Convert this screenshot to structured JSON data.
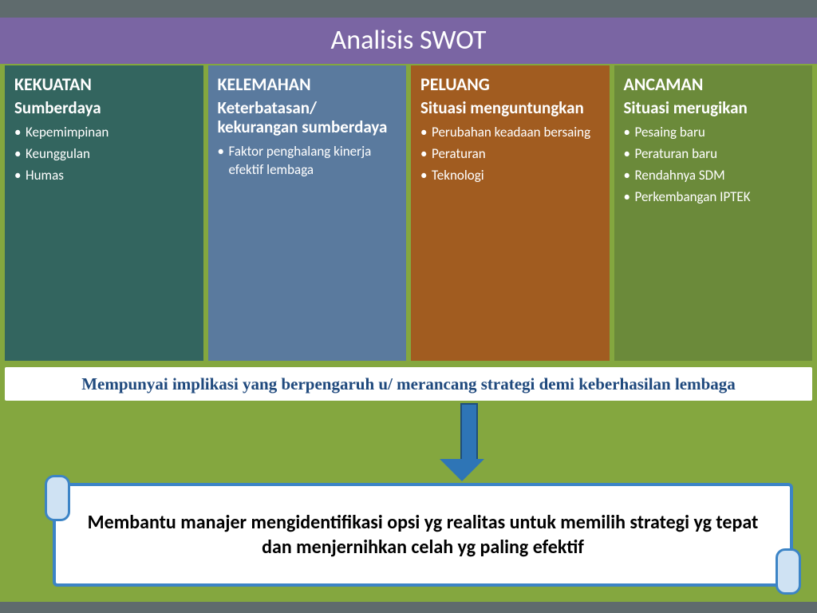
{
  "title": "Analisis SWOT",
  "colors": {
    "page_bg": "#84a73f",
    "strip": "#5f6b6d",
    "title_band": "#7a65a3",
    "implication_text": "#1f497d",
    "arrow": "#2e75b6",
    "scroll_border": "#3c84c6"
  },
  "columns": [
    {
      "bg": "#33655f",
      "title": "KEKUATAN",
      "subtitle": "Sumberdaya",
      "items": [
        "Kepemimpinan",
        "Keunggulan",
        "Humas"
      ]
    },
    {
      "bg": "#5a7a9e",
      "title": "KELEMAHAN",
      "subtitle": "Keterbatasan/ kekurangan sumberdaya",
      "items": [
        "Faktor penghalang kinerja efektif lembaga"
      ]
    },
    {
      "bg": "#a15c20",
      "title": "PELUANG",
      "subtitle": "Situasi menguntungkan",
      "items": [
        "Perubahan keadaan bersaing",
        "Peraturan",
        "Teknologi"
      ]
    },
    {
      "bg": "#6b8a3a",
      "title": "ANCAMAN",
      "subtitle": "Situasi merugikan",
      "items": [
        "Pesaing baru",
        "Peraturan baru",
        "Rendahnya SDM",
        "Perkembangan IPTEK"
      ]
    }
  ],
  "implication": "Mempunyai implikasi yang berpengaruh u/ merancang strategi demi keberhasilan lembaga",
  "conclusion": "Membantu manajer mengidentifikasi opsi yg realitas untuk memilih strategi yg tepat dan menjernihkan celah yg paling efektif"
}
